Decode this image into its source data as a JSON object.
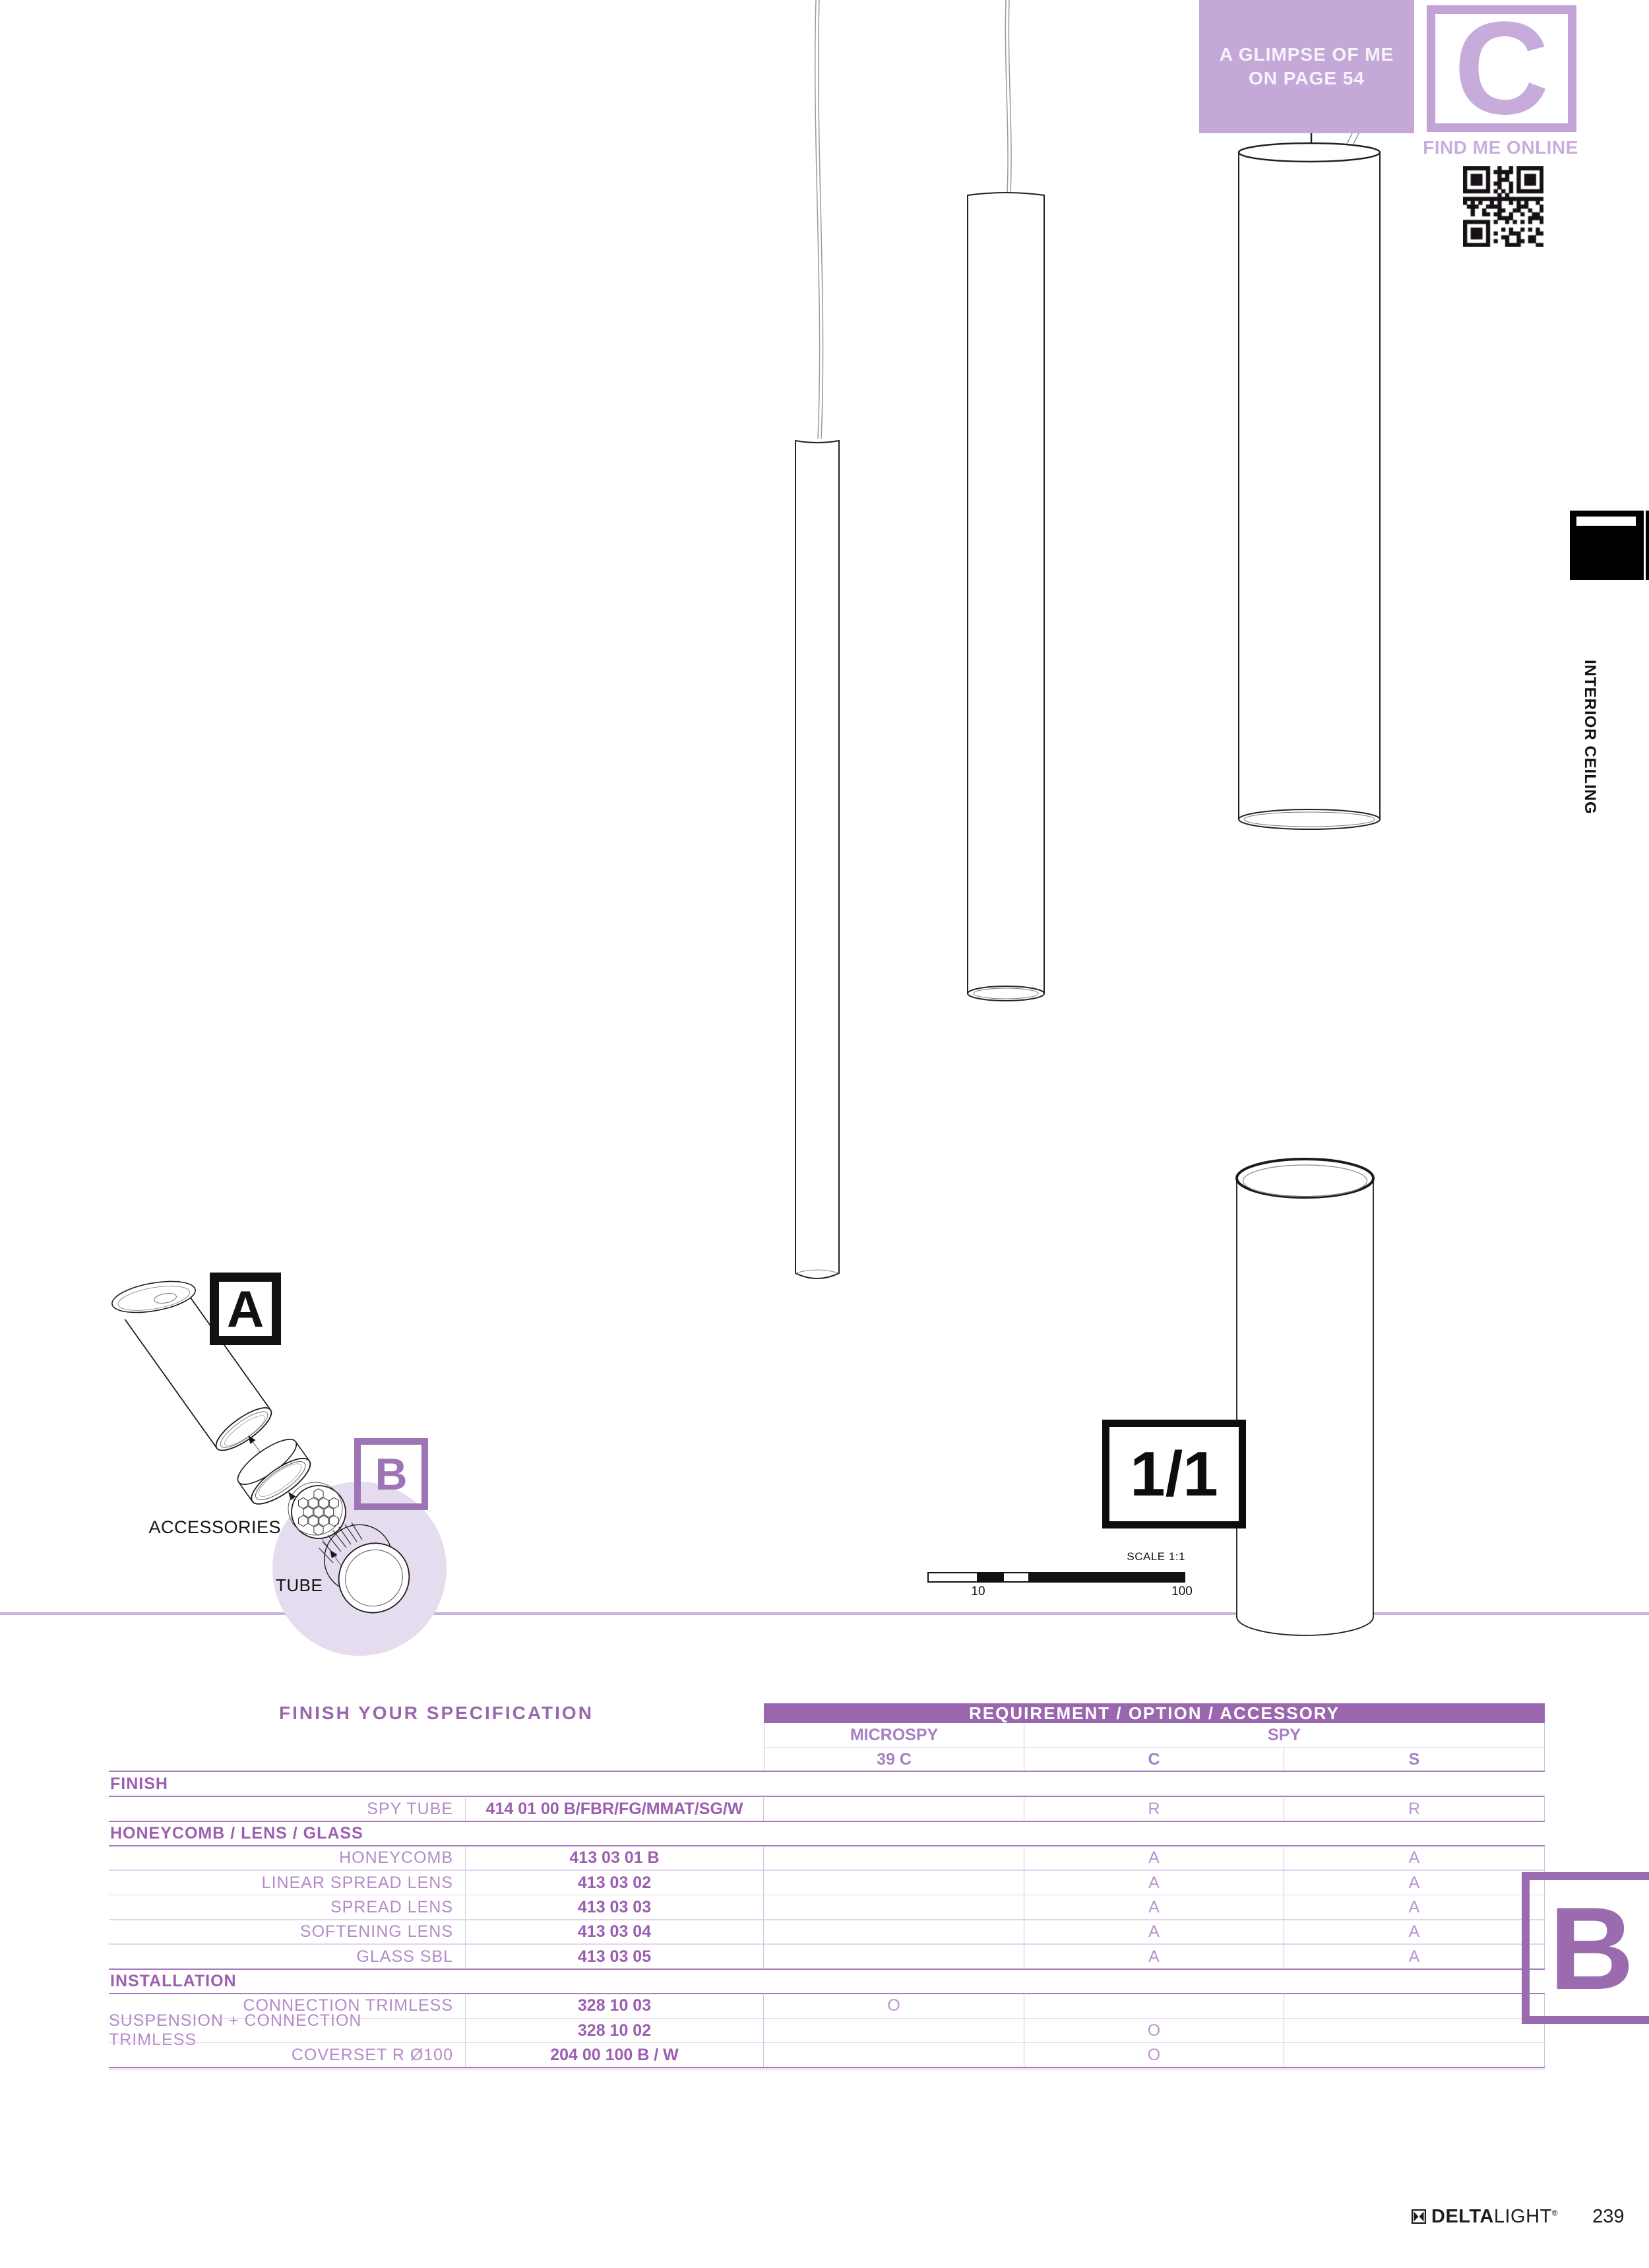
{
  "colors": {
    "promo_bg": "#c4a8d8",
    "letter_box_border": "#c2a3d6",
    "letter_glyph": "#c7abdb",
    "find_me_online": "#c9aedd",
    "table_band_bg": "#9a67ae",
    "table_label": "#b48ac9",
    "table_code": "#9c5fb0",
    "table_mark": "#bb93d0",
    "divider_line": "#c9b2dc",
    "accessory_circle": "#e5ddef",
    "big_letter_box": "#9a6bae"
  },
  "top": {
    "glimpse_line1": "A GLIMPSE OF ME",
    "glimpse_line2": "ON PAGE 54",
    "section_letter": "C",
    "find_me_online": "FIND ME ONLINE"
  },
  "side": {
    "vertical_label": "INTERIOR CEILING"
  },
  "diagram": {
    "label_a": "A",
    "label_b": "B",
    "accessories_label": "ACCESSORIES",
    "tube_label": "TUBE"
  },
  "scale": {
    "ratio_label": "1/1",
    "scale_label": "SCALE 1:1",
    "tick_start": "10",
    "tick_end": "100"
  },
  "spec_table": {
    "title": "FINISH YOUR SPECIFICATION",
    "band_title": "REQUIREMENT / OPTION / ACCESSORY",
    "col_groups": [
      {
        "label": "MICROSPY"
      },
      {
        "label": "SPY"
      }
    ],
    "variants": [
      "39 C",
      "C",
      "S"
    ],
    "rows": [
      {
        "type": "section",
        "label": "FINISH"
      },
      {
        "type": "item",
        "label": "SPY TUBE",
        "code": "414 01 00 B/FBR/FG/MMAT/SG/W",
        "microspy": "",
        "spy_c": "R",
        "spy_s": "R"
      },
      {
        "type": "section",
        "label": "HONEYCOMB / LENS / GLASS"
      },
      {
        "type": "item",
        "label": "HONEYCOMB",
        "code": "413 03 01 B",
        "microspy": "",
        "spy_c": "A",
        "spy_s": "A"
      },
      {
        "type": "item",
        "label": "LINEAR SPREAD LENS",
        "code": "413 03 02",
        "microspy": "",
        "spy_c": "A",
        "spy_s": "A"
      },
      {
        "type": "item",
        "label": "SPREAD LENS",
        "code": "413 03 03",
        "microspy": "",
        "spy_c": "A",
        "spy_s": "A"
      },
      {
        "type": "item",
        "label": "SOFTENING LENS",
        "code": "413 03 04",
        "microspy": "",
        "spy_c": "A",
        "spy_s": "A"
      },
      {
        "type": "item",
        "label": "GLASS SBL",
        "code": "413 03 05",
        "microspy": "",
        "spy_c": "A",
        "spy_s": "A"
      },
      {
        "type": "section",
        "label": "INSTALLATION"
      },
      {
        "type": "item",
        "label": "CONNECTION TRIMLESS",
        "code": "328 10 03",
        "microspy": "O",
        "spy_c": "",
        "spy_s": ""
      },
      {
        "type": "item",
        "label": "SUSPENSION + CONNECTION TRIMLESS",
        "code": "328 10 02",
        "microspy": "",
        "spy_c": "O",
        "spy_s": ""
      },
      {
        "type": "item",
        "label": "COVERSET R Ø100",
        "code": "204 00 100 B / W",
        "microspy": "",
        "spy_c": "O",
        "spy_s": ""
      }
    ]
  },
  "bottom": {
    "section_letter": "B"
  },
  "footer": {
    "brand_bold": "DELTA",
    "brand_light": "LIGHT",
    "registered": "®",
    "page_number": "239"
  }
}
